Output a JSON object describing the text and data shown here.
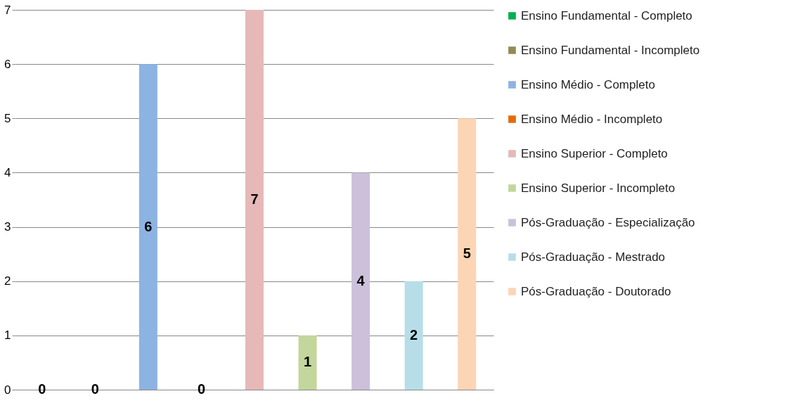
{
  "chart_data": {
    "type": "bar",
    "categories": [
      null,
      null,
      null,
      null,
      null,
      null,
      null,
      null,
      null
    ],
    "series": [
      {
        "name": "Ensino Fundamental - Completo",
        "color": "#00b050",
        "values": [
          0,
          null,
          null,
          null,
          null,
          null,
          null,
          null,
          null
        ]
      },
      {
        "name": "Ensino Fundamental - Incompleto",
        "color": "#948a54",
        "values": [
          null,
          0,
          null,
          null,
          null,
          null,
          null,
          null,
          null
        ]
      },
      {
        "name": "Ensino Médio - Completo",
        "color": "#8db3e2",
        "values": [
          null,
          null,
          6,
          null,
          null,
          null,
          null,
          null,
          null
        ]
      },
      {
        "name": "Ensino Médio - Incompleto",
        "color": "#e36c09",
        "values": [
          null,
          null,
          null,
          0,
          null,
          null,
          null,
          null,
          null
        ]
      },
      {
        "name": "Ensino Superior - Completo",
        "color": "#e6b9b8",
        "values": [
          null,
          null,
          null,
          null,
          7,
          null,
          null,
          null,
          null
        ]
      },
      {
        "name": "Ensino Superior - Incompleto",
        "color": "#c3d69b",
        "values": [
          null,
          null,
          null,
          null,
          null,
          1,
          null,
          null,
          null
        ]
      },
      {
        "name": "Pós-Graduação - Especialização",
        "color": "#ccc0da",
        "values": [
          null,
          null,
          null,
          null,
          null,
          null,
          4,
          null,
          null
        ]
      },
      {
        "name": "Pós-Graduação - Mestrado",
        "color": "#b7dee8",
        "values": [
          null,
          null,
          null,
          null,
          null,
          null,
          null,
          2,
          null
        ]
      },
      {
        "name": "Pós-Graduação - Doutorado",
        "color": "#fcd5b4",
        "values": [
          null,
          null,
          null,
          null,
          null,
          null,
          null,
          null,
          5
        ]
      }
    ],
    "ylim": [
      0,
      7
    ],
    "yticks": [
      0,
      1,
      2,
      3,
      4,
      5,
      6,
      7
    ],
    "grid": "y",
    "legend": "right",
    "data_labels": true
  }
}
